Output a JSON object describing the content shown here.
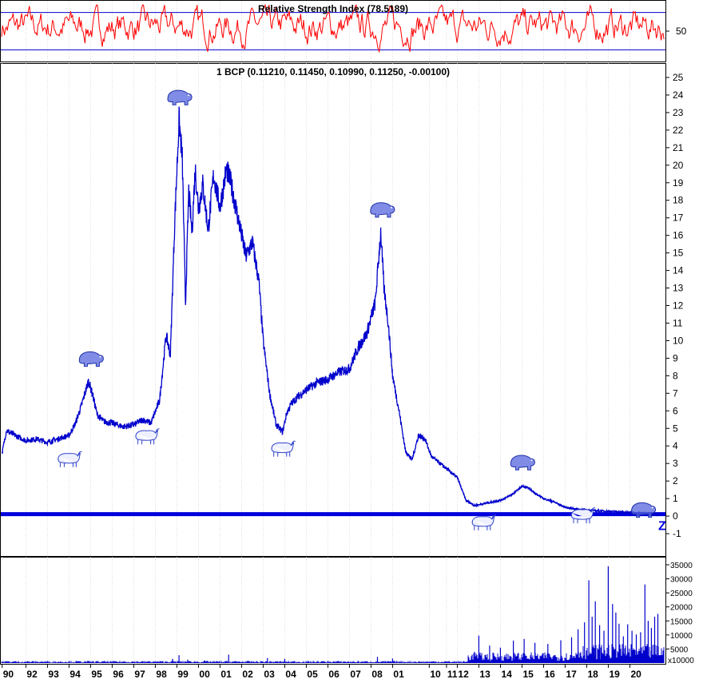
{
  "chart_data": [
    {
      "type": "line",
      "panel": "rsi",
      "title": "Relative Strength Index (78.5189)",
      "ytick_labels": [
        "50"
      ],
      "ylim": [
        20,
        80
      ],
      "guide_lines": [
        30,
        70
      ],
      "colors": {
        "line": "#ff0000",
        "guide": "#0000cc"
      }
    },
    {
      "type": "line",
      "panel": "price",
      "title": "1 BCP (0.11210, 0.11450, 0.10990, 0.11250, -0.00100)",
      "x_ticks": [
        "90",
        "92",
        "93",
        "94",
        "95",
        "96",
        "97",
        "98",
        "99",
        "00",
        "01",
        "02",
        "03",
        "04",
        "05",
        "06",
        "07",
        "08",
        "01",
        "10",
        "11",
        "12",
        "13",
        "14",
        "15",
        "16",
        "17",
        "18",
        "19",
        "20"
      ],
      "y_ticks": [
        "25",
        "24",
        "23",
        "22",
        "21",
        "20",
        "19",
        "18",
        "17",
        "16",
        "15",
        "14",
        "13",
        "12",
        "11",
        "10",
        "9",
        "8",
        "7",
        "6",
        "5",
        "4",
        "3",
        "2",
        "1",
        "0",
        "-1"
      ],
      "ylim": [
        -2,
        25.5
      ],
      "baseline_value": 0.1125,
      "baseline_marker": "Z",
      "series": [
        {
          "x": [
            1989.9,
            1990.1,
            1990.5,
            1991.0,
            1991.5,
            1992.0,
            1992.5,
            1993.0,
            1993.3,
            1993.6,
            1993.9,
            1994.1,
            1994.3,
            1994.6,
            1995.0,
            1995.5,
            1996.0,
            1996.4,
            1996.8,
            1997.2,
            1997.5,
            1997.7,
            1997.9,
            1998.1,
            1998.25,
            1998.4,
            1998.55,
            1998.7,
            1998.85,
            1999.0,
            1999.2,
            1999.45,
            1999.7,
            2000.0,
            2000.3,
            2000.5,
            2000.8,
            2001.0,
            2001.2,
            2001.5,
            2001.8,
            2002.0,
            2002.3,
            2002.6,
            2002.9,
            2003.1,
            2003.3,
            2003.6,
            2004.0,
            2004.5,
            2005.0,
            2005.5,
            2006.0,
            2006.4,
            2006.8,
            2007.2,
            2007.45,
            2007.6,
            2007.8,
            2008.0,
            2008.3,
            2008.6,
            2008.9,
            2009.2,
            2009.5,
            2009.8,
            2010.1,
            2010.4,
            2010.7,
            2011.0,
            2011.4,
            2011.8,
            2012.2,
            2012.6,
            2013.0,
            2013.5,
            2014.0,
            2014.3,
            2014.6,
            2015.0,
            2015.5,
            2016.0,
            2016.5,
            2017.0,
            2017.5,
            2018.0,
            2018.5,
            2019.0,
            2019.5,
            2020.0,
            2020.4
          ],
          "values": [
            3.6,
            4.9,
            4.6,
            4.3,
            4.4,
            4.2,
            4.4,
            4.6,
            5.3,
            6.4,
            7.7,
            6.9,
            5.8,
            5.4,
            5.3,
            5.1,
            5.2,
            5.5,
            5.3,
            6.6,
            10.3,
            9.2,
            16.8,
            22.6,
            20.4,
            12.1,
            18.5,
            16.2,
            19.8,
            17.5,
            18.9,
            16.3,
            19.4,
            17.6,
            19.8,
            19.0,
            17.2,
            16.0,
            14.8,
            15.6,
            13.4,
            10.0,
            7.0,
            5.2,
            4.8,
            5.9,
            6.4,
            6.8,
            7.2,
            7.6,
            7.8,
            8.2,
            8.4,
            9.6,
            10.4,
            12.2,
            16.2,
            13.0,
            11.0,
            8.0,
            6.0,
            3.7,
            3.2,
            4.6,
            4.4,
            3.4,
            3.1,
            2.8,
            2.5,
            2.2,
            0.9,
            0.6,
            0.7,
            0.8,
            0.9,
            1.2,
            1.7,
            1.6,
            1.3,
            1.0,
            0.8,
            0.5,
            0.4,
            0.35,
            0.3,
            0.28,
            0.25,
            0.2,
            0.16,
            0.12,
            0.11
          ],
          "color": "#0000cc"
        }
      ],
      "annotations": [
        {
          "type": "bull",
          "x": 1993.0,
          "y": 3.2
        },
        {
          "type": "bear",
          "x": 1994.0,
          "y": 8.9
        },
        {
          "type": "bull",
          "x": 1996.6,
          "y": 4.5
        },
        {
          "type": "bear",
          "x": 1998.1,
          "y": 23.8
        },
        {
          "type": "bull",
          "x": 2002.9,
          "y": 3.8
        },
        {
          "type": "bear",
          "x": 2007.5,
          "y": 17.4
        },
        {
          "type": "bull",
          "x": 2012.2,
          "y": -0.4
        },
        {
          "type": "bear",
          "x": 2014.0,
          "y": 3.0
        },
        {
          "type": "bull",
          "x": 2016.8,
          "y": 0.0
        },
        {
          "type": "bear",
          "x": 2019.6,
          "y": 0.3
        }
      ]
    },
    {
      "type": "bar",
      "panel": "volume",
      "y_ticks": [
        "35000",
        "30000",
        "25000",
        "20000",
        "15000",
        "10000",
        "5000"
      ],
      "units_label": "x10000",
      "ylim": [
        0,
        37000
      ],
      "color": "#0000cc",
      "x": [
        1997.8,
        1998.1,
        1998.5,
        1999.3,
        2000.4,
        2002.2,
        2003.0,
        2007.3,
        2008.0,
        2011.8,
        2012.0,
        2012.5,
        2013.0,
        2013.6,
        2014.1,
        2014.6,
        2015.2,
        2015.8,
        2016.3,
        2016.6,
        2016.9,
        2017.1,
        2017.25,
        2017.4,
        2017.6,
        2017.8,
        2018.0,
        2018.2,
        2018.35,
        2018.5,
        2018.7,
        2018.9,
        2019.1,
        2019.3,
        2019.5,
        2019.7,
        2019.85,
        2020.0,
        2020.15,
        2020.3
      ],
      "values": [
        1500,
        2800,
        1200,
        900,
        3000,
        1800,
        1500,
        2200,
        1600,
        4000,
        9800,
        6200,
        5500,
        8000,
        8600,
        7200,
        6800,
        8100,
        9200,
        12000,
        14500,
        29500,
        16500,
        22000,
        13500,
        11500,
        34500,
        21000,
        18000,
        14000,
        9500,
        13800,
        11500,
        10200,
        11000,
        28000,
        15000,
        12500,
        16500,
        17500
      ]
    }
  ]
}
